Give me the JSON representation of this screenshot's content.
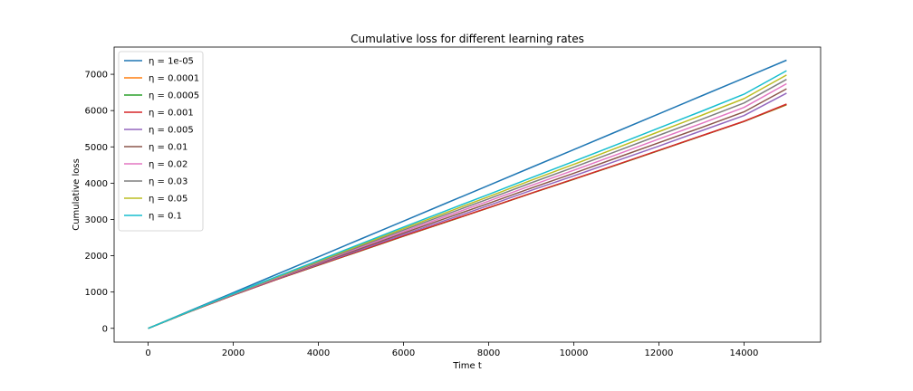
{
  "chart_data": {
    "type": "line",
    "title": "Cumulative loss for different learning rates",
    "xlabel": "Time t",
    "ylabel": "Cumulative loss",
    "xlim": [
      -800,
      15800
    ],
    "ylim": [
      -380,
      7750
    ],
    "xticks": [
      0,
      2000,
      4000,
      6000,
      8000,
      10000,
      12000,
      14000
    ],
    "yticks": [
      0,
      1000,
      2000,
      3000,
      4000,
      5000,
      6000,
      7000
    ],
    "grid": false,
    "legend_position": "top-left",
    "x": [
      0,
      1000,
      2000,
      3000,
      4000,
      5000,
      6000,
      7000,
      8000,
      9000,
      10000,
      11000,
      12000,
      13000,
      14000,
      15000
    ],
    "series": [
      {
        "name": "η = 1e-05",
        "color": "#1f77b4",
        "values": [
          0,
          493,
          985,
          1478,
          1970,
          2463,
          2955,
          3448,
          3940,
          4433,
          4925,
          5418,
          5910,
          6403,
          6895,
          7388
        ]
      },
      {
        "name": "η = 0.0001",
        "color": "#ff7f0e",
        "values": [
          0,
          470,
          915,
          1340,
          1740,
          2140,
          2540,
          2930,
          3320,
          3720,
          4110,
          4500,
          4900,
          5300,
          5700,
          6160
        ]
      },
      {
        "name": "η = 0.0005",
        "color": "#2ca02c",
        "values": [
          0,
          470,
          915,
          1340,
          1740,
          2140,
          2540,
          2930,
          3320,
          3720,
          4110,
          4500,
          4900,
          5300,
          5700,
          6170
        ]
      },
      {
        "name": "η = 0.001",
        "color": "#d62728",
        "values": [
          0,
          470,
          915,
          1340,
          1745,
          2145,
          2545,
          2935,
          3325,
          3725,
          4115,
          4505,
          4905,
          5305,
          5705,
          6180
        ]
      },
      {
        "name": "η = 0.005",
        "color": "#9467bd",
        "values": [
          0,
          472,
          922,
          1352,
          1762,
          2172,
          2582,
          2982,
          3382,
          3802,
          4202,
          4612,
          5022,
          5442,
          5862,
          6480
        ]
      },
      {
        "name": "η = 0.01",
        "color": "#8c564b",
        "values": [
          0,
          474,
          928,
          1364,
          1784,
          2204,
          2624,
          3034,
          3444,
          3864,
          4274,
          4694,
          5114,
          5534,
          5964,
          6600
        ]
      },
      {
        "name": "η = 0.02",
        "color": "#e377c2",
        "values": [
          0,
          476,
          935,
          1378,
          1806,
          2236,
          2666,
          3086,
          3506,
          3936,
          4356,
          4786,
          5216,
          5646,
          6086,
          6740
        ]
      },
      {
        "name": "η = 0.03",
        "color": "#7f7f7f",
        "values": [
          0,
          478,
          942,
          1392,
          1828,
          2268,
          2708,
          3138,
          3568,
          4008,
          4438,
          4878,
          5318,
          5758,
          6208,
          6860
        ]
      },
      {
        "name": "η = 0.05",
        "color": "#bcbd22",
        "values": [
          0,
          480,
          948,
          1404,
          1848,
          2298,
          2748,
          3188,
          3628,
          4078,
          4518,
          4968,
          5418,
          5868,
          6328,
          6980
        ]
      },
      {
        "name": "η = 0.1",
        "color": "#17becf",
        "values": [
          0,
          482,
          955,
          1418,
          1870,
          2330,
          2790,
          3240,
          3690,
          4150,
          4600,
          5060,
          5520,
          5980,
          6450,
          7100
        ]
      }
    ]
  }
}
